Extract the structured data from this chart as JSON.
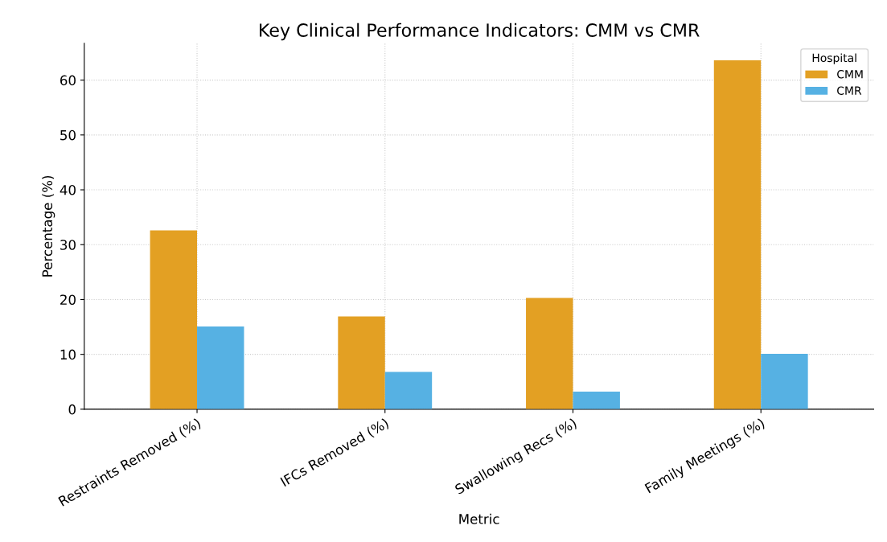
{
  "chart_data": {
    "type": "bar",
    "title": "Key Clinical Performance Indicators: CMM vs CMR",
    "xlabel": "Metric",
    "ylabel": "Percentage (%)",
    "legend_title": "Hospital",
    "categories": [
      "Restraints Removed (%)",
      "IFCs Removed (%)",
      "Swallowing Recs (%)",
      "Family Meetings (%)"
    ],
    "series": [
      {
        "name": "CMM",
        "color": "#e3a023",
        "values": [
          32.6,
          16.9,
          20.3,
          63.6
        ]
      },
      {
        "name": "CMR",
        "color": "#56b1e3",
        "values": [
          15.1,
          6.8,
          3.2,
          10.1
        ]
      }
    ],
    "ylim": [
      0,
      66.7
    ],
    "yticks": [
      0,
      10,
      20,
      30,
      40,
      50,
      60
    ],
    "grid": true,
    "legend": "top right"
  }
}
